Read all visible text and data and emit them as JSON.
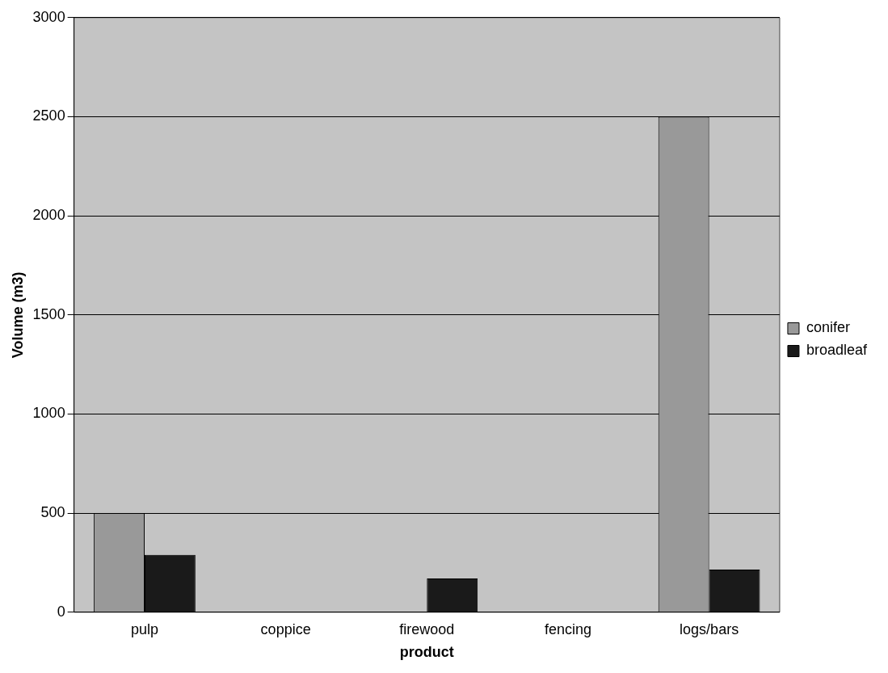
{
  "chart_data": {
    "type": "bar",
    "xlabel": "product",
    "ylabel": "Volume (m3)",
    "categories": [
      "pulp",
      "coppice",
      "firewood",
      "fencing",
      "logs/bars"
    ],
    "series": [
      {
        "name": "conifer",
        "color": "#999999",
        "values": [
          500,
          null,
          null,
          null,
          2500
        ]
      },
      {
        "name": "broadleaf",
        "color": "#1a1a1a",
        "values": [
          290,
          null,
          170,
          null,
          215
        ]
      }
    ],
    "ylim": [
      0,
      3000
    ],
    "yticks": [
      0,
      500,
      1000,
      1500,
      2000,
      2500,
      3000
    ],
    "grid": "y",
    "legend": "right"
  }
}
